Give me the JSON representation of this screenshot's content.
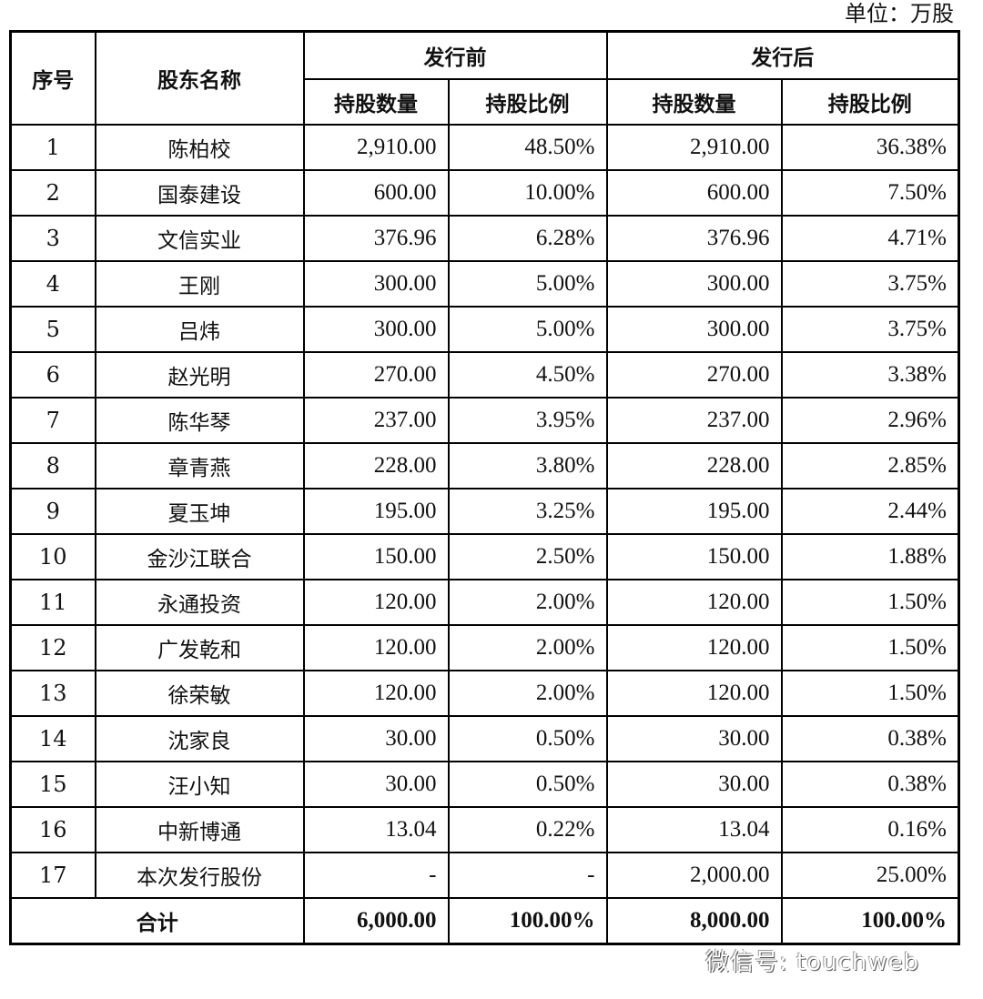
{
  "unit_label": "单位：万股",
  "headers": {
    "index": "序号",
    "name": "股东名称",
    "before": "发行前",
    "after": "发行后",
    "shares": "持股数量",
    "ratio": "持股比例"
  },
  "rows": [
    {
      "no": "1",
      "name": "陈柏校",
      "before_shares": "2,910.00",
      "before_ratio": "48.50%",
      "after_shares": "2,910.00",
      "after_ratio": "36.38%"
    },
    {
      "no": "2",
      "name": "国泰建设",
      "before_shares": "600.00",
      "before_ratio": "10.00%",
      "after_shares": "600.00",
      "after_ratio": "7.50%"
    },
    {
      "no": "3",
      "name": "文信实业",
      "before_shares": "376.96",
      "before_ratio": "6.28%",
      "after_shares": "376.96",
      "after_ratio": "4.71%"
    },
    {
      "no": "4",
      "name": "王刚",
      "before_shares": "300.00",
      "before_ratio": "5.00%",
      "after_shares": "300.00",
      "after_ratio": "3.75%"
    },
    {
      "no": "5",
      "name": "吕炜",
      "before_shares": "300.00",
      "before_ratio": "5.00%",
      "after_shares": "300.00",
      "after_ratio": "3.75%"
    },
    {
      "no": "6",
      "name": "赵光明",
      "before_shares": "270.00",
      "before_ratio": "4.50%",
      "after_shares": "270.00",
      "after_ratio": "3.38%"
    },
    {
      "no": "7",
      "name": "陈华琴",
      "before_shares": "237.00",
      "before_ratio": "3.95%",
      "after_shares": "237.00",
      "after_ratio": "2.96%"
    },
    {
      "no": "8",
      "name": "章青燕",
      "before_shares": "228.00",
      "before_ratio": "3.80%",
      "after_shares": "228.00",
      "after_ratio": "2.85%"
    },
    {
      "no": "9",
      "name": "夏玉坤",
      "before_shares": "195.00",
      "before_ratio": "3.25%",
      "after_shares": "195.00",
      "after_ratio": "2.44%"
    },
    {
      "no": "10",
      "name": "金沙江联合",
      "before_shares": "150.00",
      "before_ratio": "2.50%",
      "after_shares": "150.00",
      "after_ratio": "1.88%"
    },
    {
      "no": "11",
      "name": "永通投资",
      "before_shares": "120.00",
      "before_ratio": "2.00%",
      "after_shares": "120.00",
      "after_ratio": "1.50%"
    },
    {
      "no": "12",
      "name": "广发乾和",
      "before_shares": "120.00",
      "before_ratio": "2.00%",
      "after_shares": "120.00",
      "after_ratio": "1.50%"
    },
    {
      "no": "13",
      "name": "徐荣敏",
      "before_shares": "120.00",
      "before_ratio": "2.00%",
      "after_shares": "120.00",
      "after_ratio": "1.50%"
    },
    {
      "no": "14",
      "name": "沈家良",
      "before_shares": "30.00",
      "before_ratio": "0.50%",
      "after_shares": "30.00",
      "after_ratio": "0.38%"
    },
    {
      "no": "15",
      "name": "汪小知",
      "before_shares": "30.00",
      "before_ratio": "0.50%",
      "after_shares": "30.00",
      "after_ratio": "0.38%"
    },
    {
      "no": "16",
      "name": "中新博通",
      "before_shares": "13.04",
      "before_ratio": "0.22%",
      "after_shares": "13.04",
      "after_ratio": "0.16%"
    },
    {
      "no": "17",
      "name": "本次发行股份",
      "before_shares": "-",
      "before_ratio": "-",
      "after_shares": "2,000.00",
      "after_ratio": "25.00%"
    }
  ],
  "total": {
    "label": "合计",
    "before_shares": "6,000.00",
    "before_ratio": "100.00%",
    "after_shares": "8,000.00",
    "after_ratio": "100.00%"
  },
  "watermark": "微信号: touchweb"
}
